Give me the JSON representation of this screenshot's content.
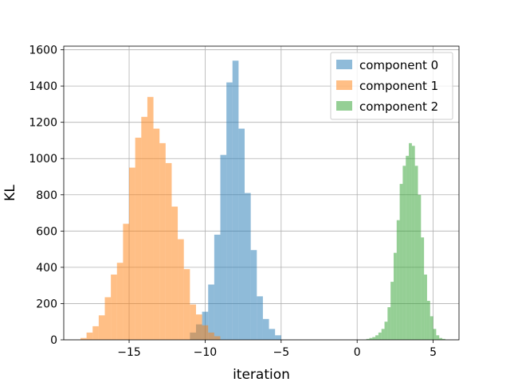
{
  "chart_data": {
    "type": "histogram",
    "title": "",
    "xlabel": "iteration",
    "ylabel": "KL",
    "xlim": [
      -19.3,
      6.7
    ],
    "ylim": [
      0,
      1620
    ],
    "xticks": [
      -15,
      -10,
      -5,
      0,
      5
    ],
    "xtick_labels": [
      "−15",
      "−10",
      "−5",
      "0",
      "5"
    ],
    "yticks": [
      0,
      200,
      400,
      600,
      800,
      1000,
      1200,
      1400,
      1600
    ],
    "ytick_labels": [
      "0",
      "200",
      "400",
      "600",
      "800",
      "1000",
      "1200",
      "1400",
      "1600"
    ],
    "grid": true,
    "legend_position": "top-right",
    "bar_opacity": 0.5,
    "series": [
      {
        "name": "component 0",
        "color": "#1f77b4",
        "bins": [
          -11.0,
          -10.6,
          -10.2,
          -9.8,
          -9.4,
          -9.0,
          -8.6,
          -8.2,
          -7.8,
          -7.4,
          -7.0,
          -6.6,
          -6.2,
          -5.8,
          -5.4,
          -5.0
        ],
        "counts": [
          40,
          85,
          155,
          305,
          580,
          1020,
          1420,
          1540,
          1165,
          810,
          495,
          240,
          115,
          60,
          25,
          10
        ]
      },
      {
        "name": "component 1",
        "color": "#ff7f0e",
        "bins": [
          -18.2,
          -17.8,
          -17.4,
          -17.0,
          -16.6,
          -16.2,
          -15.8,
          -15.4,
          -15.0,
          -14.6,
          -14.2,
          -13.8,
          -13.4,
          -13.0,
          -12.6,
          -12.2,
          -11.8,
          -11.4,
          -11.0,
          -10.6,
          -10.2,
          -9.8,
          -9.4,
          -9.0
        ],
        "counts": [
          10,
          40,
          75,
          135,
          235,
          360,
          425,
          640,
          950,
          1115,
          1230,
          1340,
          1165,
          1085,
          975,
          735,
          555,
          390,
          195,
          140,
          80,
          40,
          20,
          8
        ]
      },
      {
        "name": "component 2",
        "color": "#2ca02c",
        "bins": [
          0.6,
          0.8,
          1.0,
          1.2,
          1.4,
          1.6,
          1.8,
          2.0,
          2.2,
          2.4,
          2.6,
          2.8,
          3.0,
          3.2,
          3.4,
          3.6,
          3.8,
          4.0,
          4.2,
          4.4,
          4.6,
          4.8,
          5.0,
          5.2,
          5.4,
          5.6,
          5.8
        ],
        "counts": [
          5,
          10,
          15,
          25,
          40,
          60,
          100,
          180,
          320,
          480,
          660,
          860,
          960,
          1015,
          1085,
          1070,
          960,
          800,
          565,
          360,
          215,
          130,
          60,
          25,
          10,
          5
        ]
      }
    ]
  }
}
